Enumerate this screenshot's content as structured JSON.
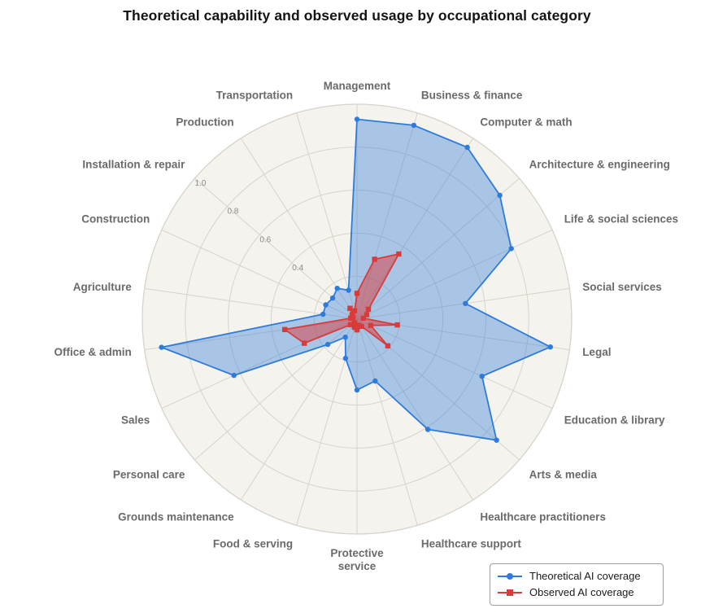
{
  "title": "Theoretical capability and observed usage by occupational category",
  "chart_data": {
    "type": "radar",
    "categories": [
      "Management",
      "Business & finance",
      "Computer & math",
      "Architecture & engineering",
      "Life & social sciences",
      "Social services",
      "Legal",
      "Education & library",
      "Arts & media",
      "Healthcare practitioners",
      "Healthcare support",
      "Protective\nservice",
      "Food & serving",
      "Grounds maintenance",
      "Personal care",
      "Sales",
      "Office & admin",
      "Agriculture",
      "Construction",
      "Installation & repair",
      "Production",
      "Transportation"
    ],
    "series": [
      {
        "name": "Theoretical AI coverage",
        "marker": "circle",
        "color": "#2e7bd9",
        "fill_opacity": 0.38,
        "values": [
          0.93,
          0.94,
          0.95,
          0.88,
          0.79,
          0.51,
          0.91,
          0.64,
          0.86,
          0.61,
          0.3,
          0.33,
          0.19,
          0.1,
          0.18,
          0.63,
          0.92,
          0.16,
          0.16,
          0.15,
          0.17,
          0.14
        ]
      },
      {
        "name": "Observed AI coverage",
        "marker": "square",
        "color": "#d93b3b",
        "fill_opacity": 0.5,
        "values": [
          0.12,
          0.29,
          0.36,
          0.07,
          0.05,
          0.03,
          0.19,
          0.07,
          0.19,
          0.04,
          0.03,
          0.05,
          0.04,
          0.02,
          0.04,
          0.27,
          0.34,
          0.03,
          0.02,
          0.03,
          0.06,
          0.04
        ]
      }
    ],
    "radial_ticks": [
      0.4,
      0.6,
      0.8,
      1.0
    ],
    "grid_rings": [
      0.2,
      0.4,
      0.6,
      0.8,
      1.0
    ],
    "rlim": [
      0,
      1.0
    ],
    "tick_spoke_index": 19,
    "grid_on": true,
    "legend_position": "bottom-right",
    "colors": {
      "plot_bg": "#f5f3ee",
      "grid": "#d6d3ca",
      "category_label": "#6a6a6a",
      "tick_label": "#8a8a8a",
      "title": "#141414"
    }
  }
}
